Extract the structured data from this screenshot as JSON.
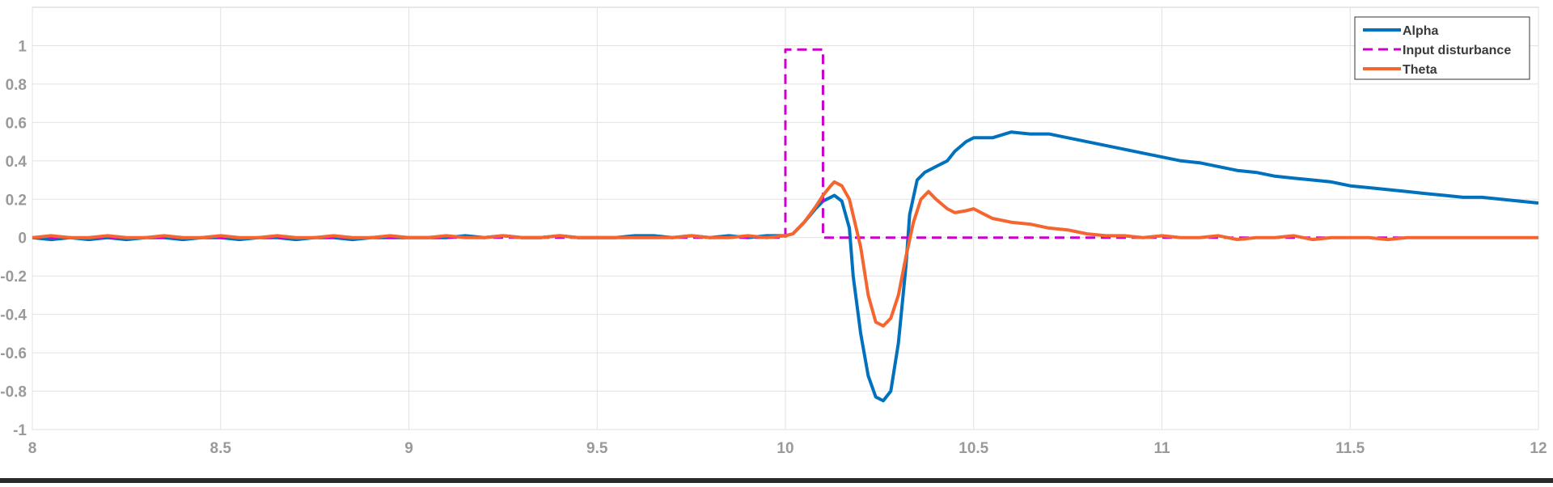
{
  "chart_data": {
    "type": "line",
    "title": "",
    "xlabel": "",
    "ylabel": "",
    "xlim": [
      8,
      12
    ],
    "ylim": [
      -1,
      1.2
    ],
    "grid": true,
    "legend_position": "top-right",
    "x_ticks": [
      {
        "value": 8,
        "label": "8"
      },
      {
        "value": 8.5,
        "label": "8.5"
      },
      {
        "value": 9,
        "label": "9"
      },
      {
        "value": 9.5,
        "label": "9.5"
      },
      {
        "value": 10,
        "label": "10"
      },
      {
        "value": 10.5,
        "label": "10.5"
      },
      {
        "value": 11,
        "label": "11"
      },
      {
        "value": 11.5,
        "label": "11.5"
      },
      {
        "value": 12,
        "label": "12"
      }
    ],
    "y_ticks": [
      {
        "value": 1,
        "label": "1"
      },
      {
        "value": 0.8,
        "label": "0.8"
      },
      {
        "value": 0.6,
        "label": "0.6"
      },
      {
        "value": 0.4,
        "label": "0.4"
      },
      {
        "value": 0.2,
        "label": "0.2"
      },
      {
        "value": 0,
        "label": "0"
      },
      {
        "value": -0.2,
        "label": "-0.2"
      },
      {
        "value": -0.4,
        "label": "-0.4"
      },
      {
        "value": -0.6,
        "label": "-0.6"
      },
      {
        "value": -0.8,
        "label": "-0.8"
      },
      {
        "value": -1,
        "label": "-1"
      }
    ],
    "series": [
      {
        "name": "Alpha",
        "color": "#0072bd",
        "style": "solid",
        "x": [
          8.0,
          8.05,
          8.1,
          8.15,
          8.2,
          8.25,
          8.3,
          8.35,
          8.4,
          8.45,
          8.5,
          8.55,
          8.6,
          8.65,
          8.7,
          8.75,
          8.8,
          8.85,
          8.9,
          8.95,
          9.0,
          9.05,
          9.1,
          9.15,
          9.2,
          9.25,
          9.3,
          9.35,
          9.4,
          9.45,
          9.5,
          9.55,
          9.6,
          9.65,
          9.7,
          9.75,
          9.8,
          9.85,
          9.9,
          9.95,
          10.0,
          10.02,
          10.05,
          10.08,
          10.1,
          10.12,
          10.13,
          10.15,
          10.17,
          10.18,
          10.2,
          10.22,
          10.24,
          10.26,
          10.28,
          10.3,
          10.32,
          10.33,
          10.35,
          10.37,
          10.4,
          10.43,
          10.45,
          10.48,
          10.5,
          10.55,
          10.6,
          10.65,
          10.7,
          10.75,
          10.8,
          10.85,
          10.9,
          10.95,
          11.0,
          11.05,
          11.1,
          11.15,
          11.2,
          11.25,
          11.3,
          11.35,
          11.4,
          11.45,
          11.5,
          11.55,
          11.6,
          11.65,
          11.7,
          11.75,
          11.8,
          11.85,
          11.9,
          11.95,
          12.0
        ],
        "y": [
          0.0,
          -0.01,
          0.0,
          -0.01,
          0.0,
          -0.01,
          0.0,
          0.0,
          -0.01,
          0.0,
          0.0,
          -0.01,
          0.0,
          0.0,
          -0.01,
          0.0,
          0.0,
          -0.01,
          0.0,
          0.0,
          0.0,
          0.0,
          0.0,
          0.01,
          0.0,
          0.01,
          0.0,
          0.0,
          0.01,
          0.0,
          0.0,
          0.0,
          0.01,
          0.01,
          0.0,
          0.01,
          0.0,
          0.01,
          0.0,
          0.01,
          0.01,
          0.02,
          0.08,
          0.15,
          0.19,
          0.21,
          0.22,
          0.19,
          0.05,
          -0.2,
          -0.5,
          -0.72,
          -0.83,
          -0.85,
          -0.8,
          -0.55,
          -0.15,
          0.12,
          0.3,
          0.34,
          0.37,
          0.4,
          0.45,
          0.5,
          0.52,
          0.52,
          0.55,
          0.54,
          0.54,
          0.52,
          0.5,
          0.48,
          0.46,
          0.44,
          0.42,
          0.4,
          0.39,
          0.37,
          0.35,
          0.34,
          0.32,
          0.31,
          0.3,
          0.29,
          0.27,
          0.26,
          0.25,
          0.24,
          0.23,
          0.22,
          0.21,
          0.21,
          0.2,
          0.19,
          0.18
        ]
      },
      {
        "name": "Input disturbance",
        "color": "#cc00cc",
        "style": "dashed",
        "x": [
          8.0,
          10.0,
          10.0,
          10.1,
          10.1,
          12.0
        ],
        "y": [
          0.0,
          0.0,
          0.98,
          0.98,
          0.0,
          0.0
        ]
      },
      {
        "name": "Theta",
        "color": "#f5652f",
        "style": "solid",
        "x": [
          8.0,
          8.05,
          8.1,
          8.15,
          8.2,
          8.25,
          8.3,
          8.35,
          8.4,
          8.45,
          8.5,
          8.55,
          8.6,
          8.65,
          8.7,
          8.75,
          8.8,
          8.85,
          8.9,
          8.95,
          9.0,
          9.05,
          9.1,
          9.15,
          9.2,
          9.25,
          9.3,
          9.35,
          9.4,
          9.45,
          9.5,
          9.55,
          9.6,
          9.65,
          9.7,
          9.75,
          9.8,
          9.85,
          9.9,
          9.95,
          10.0,
          10.02,
          10.05,
          10.08,
          10.1,
          10.12,
          10.13,
          10.15,
          10.17,
          10.2,
          10.22,
          10.24,
          10.26,
          10.28,
          10.3,
          10.32,
          10.34,
          10.36,
          10.38,
          10.4,
          10.43,
          10.45,
          10.48,
          10.5,
          10.53,
          10.55,
          10.6,
          10.65,
          10.7,
          10.75,
          10.8,
          10.85,
          10.9,
          10.95,
          11.0,
          11.05,
          11.1,
          11.15,
          11.2,
          11.25,
          11.3,
          11.35,
          11.4,
          11.45,
          11.5,
          11.55,
          11.6,
          11.65,
          11.7,
          11.75,
          11.8,
          11.85,
          11.9,
          11.95,
          12.0
        ],
        "y": [
          0.0,
          0.01,
          0.0,
          0.0,
          0.01,
          0.0,
          0.0,
          0.01,
          0.0,
          0.0,
          0.01,
          0.0,
          0.0,
          0.01,
          0.0,
          0.0,
          0.01,
          0.0,
          0.0,
          0.01,
          0.0,
          0.0,
          0.01,
          0.0,
          0.0,
          0.01,
          0.0,
          0.0,
          0.01,
          0.0,
          0.0,
          0.0,
          0.0,
          0.0,
          0.0,
          0.01,
          0.0,
          0.0,
          0.01,
          0.0,
          0.01,
          0.02,
          0.08,
          0.16,
          0.22,
          0.27,
          0.29,
          0.27,
          0.2,
          -0.05,
          -0.3,
          -0.44,
          -0.46,
          -0.42,
          -0.3,
          -0.1,
          0.08,
          0.2,
          0.24,
          0.2,
          0.15,
          0.13,
          0.14,
          0.15,
          0.12,
          0.1,
          0.08,
          0.07,
          0.05,
          0.04,
          0.02,
          0.01,
          0.01,
          0.0,
          0.01,
          0.0,
          0.0,
          0.01,
          -0.01,
          0.0,
          0.0,
          0.01,
          -0.01,
          0.0,
          0.0,
          0.0,
          -0.01,
          0.0,
          0.0,
          0.0,
          0.0,
          0.0,
          0.0,
          0.0,
          0.0
        ]
      }
    ]
  }
}
